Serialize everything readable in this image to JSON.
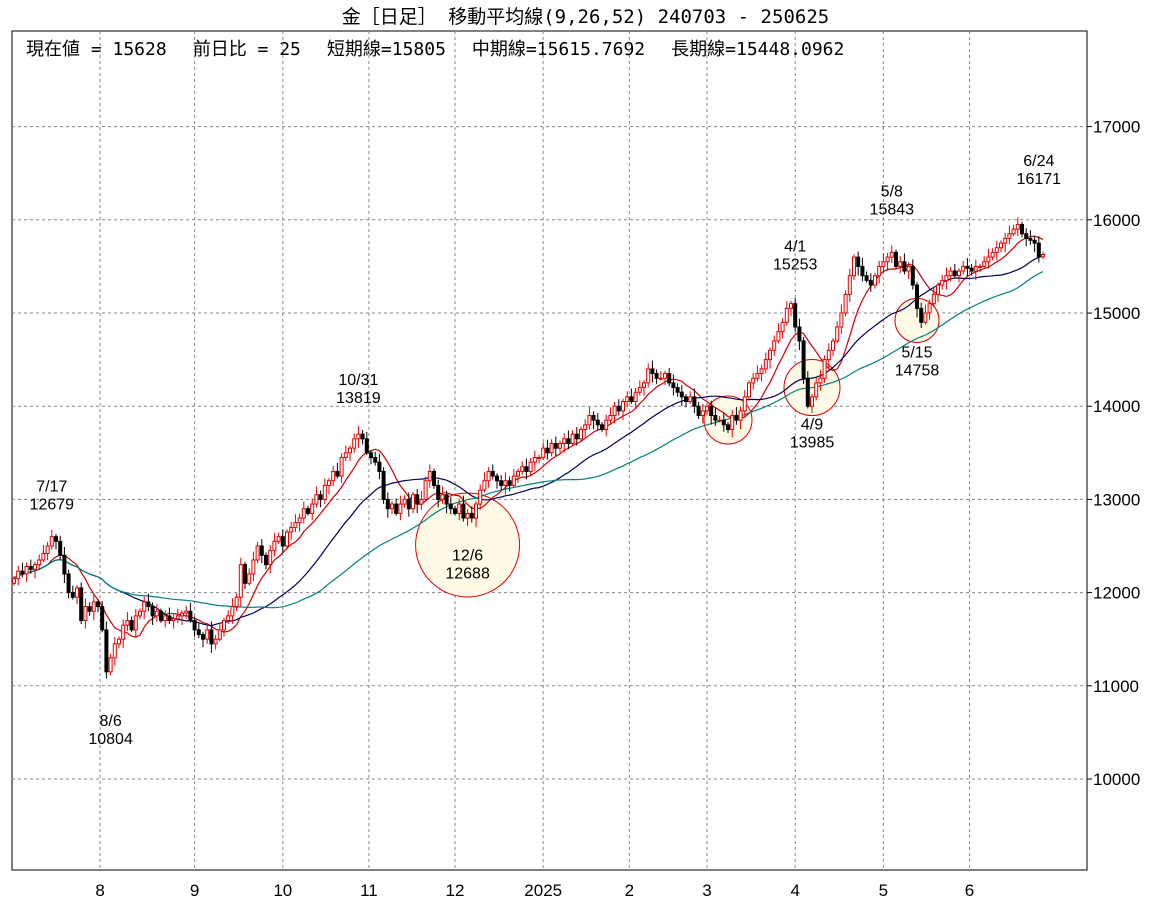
{
  "title": "金［日足］ 移動平均線(9,26,52)  240703 - 250625",
  "info": {
    "current": "現在値 = 15628",
    "change": "前日比 = 25",
    "short": "短期線=15805",
    "mid": "中期線=15615.7692",
    "long": "長期線=15448.0962"
  },
  "colors": {
    "up": "#e00000",
    "down": "#000000",
    "ma_short": "#d00000",
    "ma_mid": "#000060",
    "ma_long": "#008080",
    "circle": "#e00000",
    "circle_fill": "#fffbe6"
  },
  "chart_data": {
    "type": "candlestick",
    "title": "金［日足］ 移動平均線(9,26,52)",
    "period": "240703 - 250625",
    "ylim": [
      8900,
      18000
    ],
    "yticks": [
      10000,
      11000,
      12000,
      13000,
      14000,
      15000,
      16000,
      17000
    ],
    "xmonths": [
      {
        "label": "8",
        "index": 20.5
      },
      {
        "label": "9",
        "index": 43
      },
      {
        "label": "10",
        "index": 64
      },
      {
        "label": "11",
        "index": 84.5
      },
      {
        "label": "12",
        "index": 105
      },
      {
        "label": "2025",
        "index": 126
      },
      {
        "label": "2",
        "index": 146.5
      },
      {
        "label": "3",
        "index": 165
      },
      {
        "label": "4",
        "index": 186
      },
      {
        "label": "5",
        "index": 207
      },
      {
        "label": "6",
        "index": 227.5
      }
    ],
    "ma_periods": [
      9,
      26,
      52
    ],
    "closes": [
      12150,
      12230,
      12200,
      12280,
      12250,
      12300,
      12350,
      12420,
      12500,
      12600,
      12550,
      12400,
      12200,
      12000,
      11950,
      12050,
      11700,
      11850,
      11800,
      11900,
      11850,
      11600,
      11150,
      11300,
      11450,
      11500,
      11650,
      11700,
      11600,
      11750,
      11800,
      11900,
      11850,
      11750,
      11800,
      11700,
      11750,
      11700,
      11720,
      11750,
      11780,
      11800,
      11700,
      11600,
      11550,
      11500,
      11600,
      11450,
      11500,
      11600,
      11700,
      11750,
      11850,
      11950,
      12300,
      12100,
      12200,
      12350,
      12500,
      12400,
      12300,
      12450,
      12550,
      12600,
      12500,
      12650,
      12700,
      12750,
      12800,
      12900,
      12850,
      12950,
      13050,
      13000,
      13150,
      13200,
      13300,
      13250,
      13450,
      13500,
      13550,
      13650,
      13700,
      13650,
      13500,
      13450,
      13400,
      13300,
      13000,
      12900,
      12950,
      12850,
      12950,
      13000,
      12900,
      13050,
      12950,
      13000,
      13200,
      13300,
      13150,
      13000,
      13050,
      12950,
      12900,
      12850,
      12950,
      12800,
      12850,
      12800,
      12950,
      13100,
      13200,
      13300,
      13250,
      13200,
      13150,
      13200,
      13150,
      13250,
      13300,
      13350,
      13300,
      13400,
      13450,
      13450,
      13550,
      13500,
      13600,
      13550,
      13600,
      13650,
      13600,
      13700,
      13650,
      13750,
      13800,
      13900,
      13850,
      13800,
      13750,
      13850,
      13900,
      14000,
      13950,
      14050,
      14100,
      14050,
      14150,
      14200,
      14250,
      14400,
      14350,
      14300,
      14300,
      14350,
      14250,
      14200,
      14150,
      14100,
      14050,
      14100,
      14000,
      13900,
      13950,
      14000,
      13900,
      13850,
      13850,
      13800,
      13750,
      13900,
      13850,
      13950,
      14100,
      14250,
      14300,
      14350,
      14400,
      14500,
      14600,
      14700,
      14800,
      14900,
      15050,
      15100,
      14850,
      14700,
      14300,
      14000,
      14100,
      14250,
      14300,
      14500,
      14600,
      14700,
      14850,
      15000,
      15200,
      15400,
      15600,
      15500,
      15400,
      15350,
      15300,
      15400,
      15500,
      15550,
      15600,
      15650,
      15500,
      15550,
      15450,
      15500,
      15300,
      15050,
      14900,
      15000,
      15100,
      15200,
      15300,
      15350,
      15400,
      15450,
      15400,
      15450,
      15500,
      15480,
      15450,
      15500,
      15500,
      15550,
      15600,
      15650,
      15700,
      15750,
      15800,
      15850,
      15900,
      15950,
      15850,
      15800,
      15780,
      15750,
      15603,
      15628
    ],
    "annotations": [
      {
        "date": "7/17",
        "value": "12679",
        "index": 9,
        "price": 12679,
        "pos": "above"
      },
      {
        "date": "8/6",
        "value": "10804",
        "index": 23,
        "price": 10804,
        "pos": "below"
      },
      {
        "date": "10/31",
        "value": "13819",
        "index": 82,
        "price": 13819,
        "pos": "above"
      },
      {
        "date": "12/6",
        "value": "12688",
        "index": 108,
        "price": 12450,
        "pos": "center"
      },
      {
        "date": "4/1",
        "value": "15253",
        "index": 186,
        "price": 15253,
        "pos": "above"
      },
      {
        "date": "4/9",
        "value": "13985",
        "index": 190,
        "price": 13985,
        "pos": "below"
      },
      {
        "date": "5/8",
        "value": "15843",
        "index": 209,
        "price": 15843,
        "pos": "above"
      },
      {
        "date": "5/15",
        "value": "14758",
        "index": 215,
        "price": 14758,
        "pos": "below"
      },
      {
        "date": "6/24",
        "value": "16171",
        "index": 244,
        "price": 16171,
        "pos": "above"
      }
    ],
    "circles": [
      {
        "index": 108,
        "price": 12511
      },
      {
        "index": 170,
        "price": 13852
      },
      {
        "index": 190,
        "price": 14200
      },
      {
        "index": 215,
        "price": 14920
      }
    ]
  }
}
